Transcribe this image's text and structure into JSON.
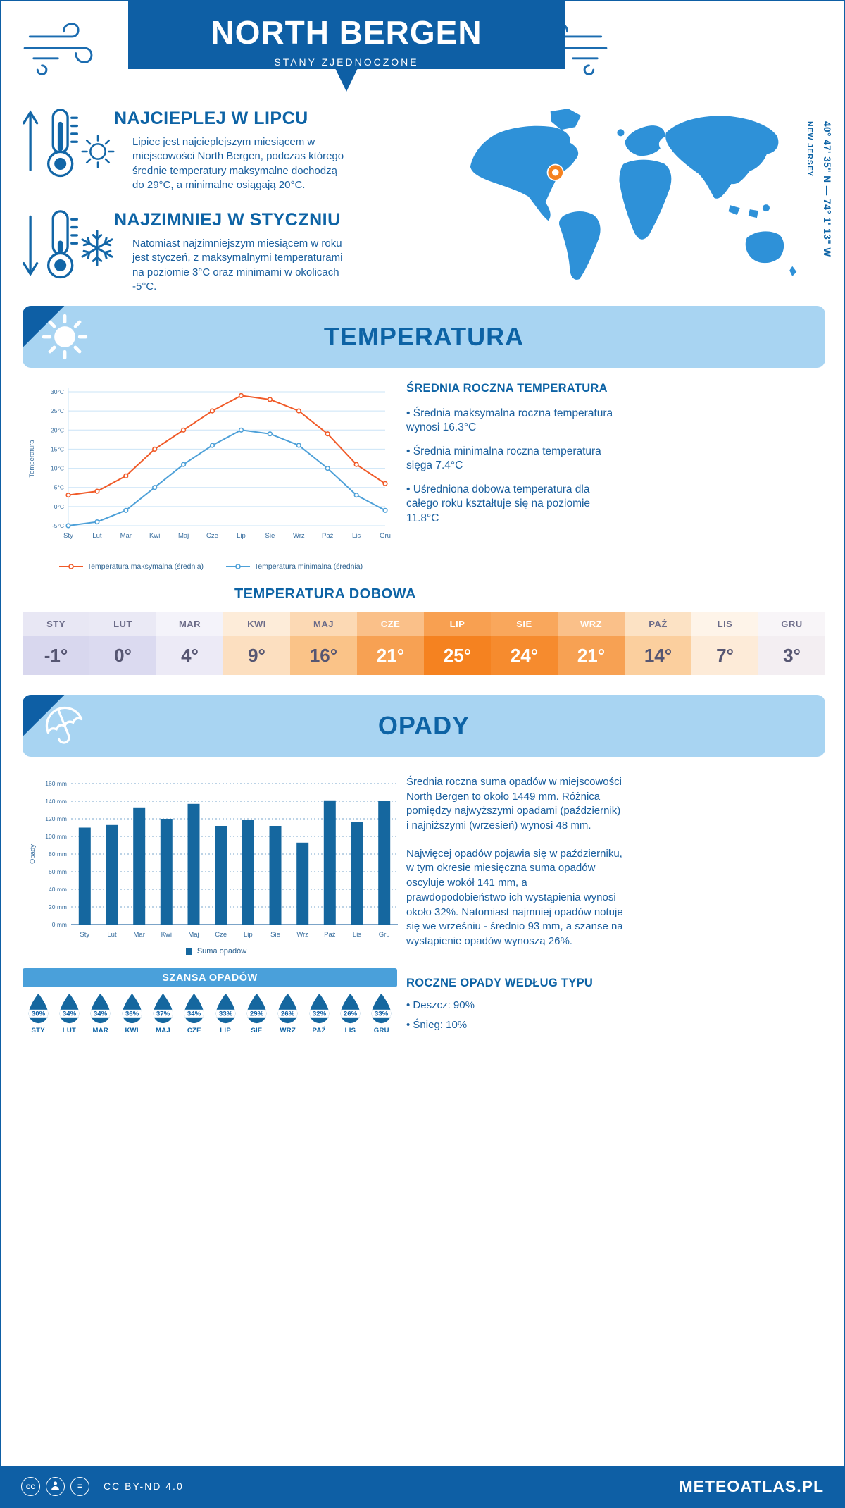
{
  "colors": {
    "primary": "#0e5fa5",
    "banner_bg": "#a8d4f2",
    "heading": "#0d63a5",
    "body": "#1a5f9e",
    "accent": "#f05a28",
    "line_min": "#4da0d8",
    "bar": "#15679f",
    "map": "#2e91d8",
    "marker": "#f58220",
    "strip": "#4aa0da"
  },
  "header": {
    "title": "NORTH BERGEN",
    "subtitle": "STANY ZJEDNOCZONE"
  },
  "location": {
    "region": "NEW JERSEY",
    "coordinates": "40° 47' 35\" N — 74° 1' 13\" W"
  },
  "warmest": {
    "heading": "NAJCIEPLEJ W LIPCU",
    "text": "Lipiec jest najcieplejszym miesiącem w miejscowości North Bergen, podczas którego średnie temperatury maksymalne dochodzą do 29°C, a minimalne osiągają 20°C."
  },
  "coldest": {
    "heading": "NAJZIMNIEJ W STYCZNIU",
    "text": "Natomiast najzimniejszym miesiącem w roku jest styczeń, z maksymalnymi temperaturami na poziomie 3°C oraz minimami w okolicach -5°C."
  },
  "temperature_section": {
    "title": "TEMPERATURA",
    "annual": {
      "heading": "ŚREDNIA ROCZNA TEMPERATURA",
      "bullets": [
        "Średnia maksymalna roczna temperatura wynosi 16.3°C",
        "Średnia minimalna roczna temperatura sięga 7.4°C",
        "Uśredniona dobowa temperatura dla całego roku kształtuje się na poziomie 11.8°C"
      ]
    },
    "daily": {
      "heading": "TEMPERATURA DOBOWA",
      "months": [
        "STY",
        "LUT",
        "MAR",
        "KWI",
        "MAJ",
        "CZE",
        "LIP",
        "SIE",
        "WRZ",
        "PAŹ",
        "LIS",
        "GRU"
      ],
      "values": [
        "-1°",
        "0°",
        "4°",
        "9°",
        "16°",
        "21°",
        "25°",
        "24°",
        "21°",
        "14°",
        "7°",
        "3°"
      ],
      "header_colors": [
        "#e8e7f4",
        "#eae9f5",
        "#f4f3fa",
        "#fdecd9",
        "#fcd9b4",
        "#fac089",
        "#f8a051",
        "#f9a75c",
        "#fac089",
        "#fce2c4",
        "#fef4e9",
        "#f8f5f8"
      ],
      "value_colors": [
        "#d8d7ee",
        "#dbdaf0",
        "#eceaf6",
        "#fcdfc0",
        "#fac388",
        "#f7a153",
        "#f58220",
        "#f68b2e",
        "#f7a153",
        "#fbcf9e",
        "#fdebd8",
        "#f3eef2"
      ],
      "text_colors": [
        "#565672",
        "#565672",
        "#565672",
        "#565672",
        "#565672",
        "#ffffff",
        "#ffffff",
        "#ffffff",
        "#ffffff",
        "#565672",
        "#565672",
        "#565672"
      ]
    }
  },
  "chart_data": [
    {
      "type": "line",
      "title": "TEMPERATURA",
      "x": [
        "Sty",
        "Lut",
        "Mar",
        "Kwi",
        "Maj",
        "Cze",
        "Lip",
        "Sie",
        "Wrz",
        "Paź",
        "Lis",
        "Gru"
      ],
      "series": [
        {
          "name": "Temperatura maksymalna (średnia)",
          "color": "#f05a28",
          "values": [
            3,
            4,
            8,
            15,
            20,
            25,
            29,
            28,
            25,
            19,
            11,
            6
          ]
        },
        {
          "name": "Temperatura minimalna (średnia)",
          "color": "#4da0d8",
          "values": [
            -5,
            -4,
            -1,
            5,
            11,
            16,
            20,
            19,
            16,
            10,
            3,
            -1
          ]
        }
      ],
      "ylabel": "Temperatura",
      "ylim": [
        -5,
        30
      ],
      "ytick_step": 5,
      "ytick_suffix": "°C",
      "grid": true,
      "legend_position": "bottom"
    },
    {
      "type": "bar",
      "title": "OPADY",
      "categories": [
        "Sty",
        "Lut",
        "Mar",
        "Kwi",
        "Maj",
        "Cze",
        "Lip",
        "Sie",
        "Wrz",
        "Paź",
        "Lis",
        "Gru"
      ],
      "values": [
        110,
        113,
        133,
        120,
        137,
        112,
        119,
        112,
        93,
        141,
        116,
        140
      ],
      "ylabel": "Opady",
      "ylim": [
        0,
        160
      ],
      "ytick_step": 20,
      "ytick_suffix": " mm",
      "grid": true,
      "bar_color": "#15679f",
      "legend": "Suma opadów",
      "legend_position": "bottom"
    }
  ],
  "precipitation_section": {
    "title": "OPADY",
    "legend": "Suma opadów",
    "text1": "Średnia roczna suma opadów w miejscowości North Bergen to około 1449 mm. Różnica pomiędzy najwyższymi opadami (październik) i najniższymi (wrzesień) wynosi 48 mm.",
    "text2": "Najwięcej opadów pojawia się w październiku, w tym okresie miesięczna suma opadów oscyluje wokół 141 mm, a prawdopodobieństwo ich wystąpienia wynosi około 32%. Natomiast najmniej opadów notuje się we wrześniu - średnio 93 mm, a szanse na wystąpienie opadów wynoszą 26%.",
    "chance": {
      "heading": "SZANSA OPADÓW",
      "months": [
        "STY",
        "LUT",
        "MAR",
        "KWI",
        "MAJ",
        "CZE",
        "LIP",
        "SIE",
        "WRZ",
        "PAŹ",
        "LIS",
        "GRU"
      ],
      "values": [
        "30%",
        "34%",
        "34%",
        "36%",
        "37%",
        "34%",
        "33%",
        "29%",
        "26%",
        "32%",
        "26%",
        "33%"
      ]
    },
    "types": {
      "heading": "ROCZNE OPADY WEDŁUG TYPU",
      "bullets": [
        "Deszcz: 90%",
        "Śnieg: 10%"
      ]
    }
  },
  "footer": {
    "license": "CC BY-ND 4.0",
    "brand": "METEOATLAS.PL"
  }
}
